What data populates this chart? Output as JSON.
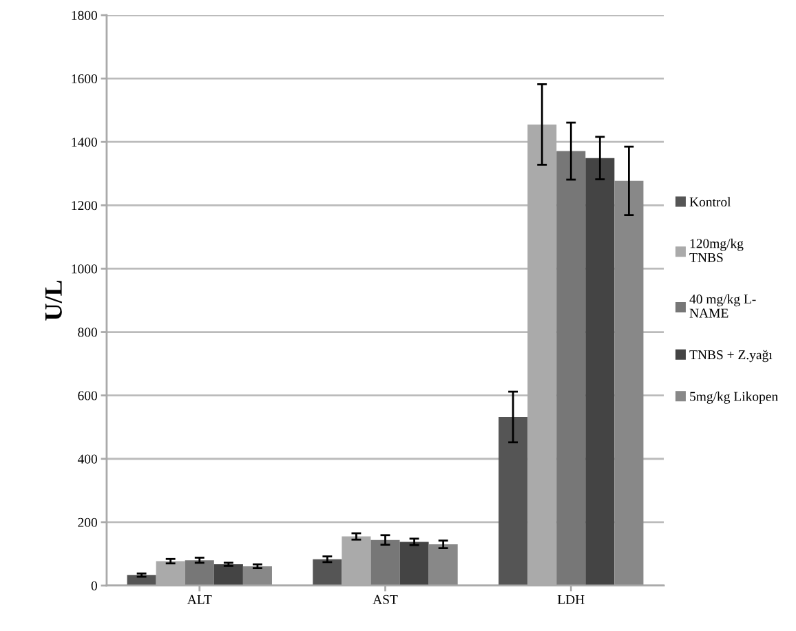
{
  "chart_data": {
    "type": "bar",
    "ylabel": "U/L",
    "categories": [
      "ALT",
      "AST",
      "LDH"
    ],
    "series": [
      {
        "name": "Kontrol",
        "color": "#555555",
        "values": [
          33,
          83,
          532
        ],
        "errors": [
          5,
          9,
          80
        ]
      },
      {
        "name": "120mg/kg\nTNBS",
        "color": "#aaaaaa",
        "values": [
          77,
          155,
          1455
        ],
        "errors": [
          7,
          10,
          127
        ]
      },
      {
        "name": "40 mg/kg L-\nNAME",
        "color": "#777777",
        "values": [
          80,
          144,
          1371
        ],
        "errors": [
          8,
          15,
          90
        ]
      },
      {
        "name": "TNBS + Z.yağı",
        "color": "#444444",
        "values": [
          67,
          138,
          1349
        ],
        "errors": [
          5,
          10,
          67
        ]
      },
      {
        "name": "5mg/kg Likopen",
        "color": "#888888",
        "values": [
          61,
          130,
          1277
        ],
        "errors": [
          6,
          12,
          108
        ]
      }
    ],
    "ylim": [
      0,
      1800
    ],
    "yticks": [
      0,
      200,
      400,
      600,
      800,
      1000,
      1200,
      1400,
      1600,
      1800
    ],
    "grid": "y",
    "legend": "right"
  }
}
